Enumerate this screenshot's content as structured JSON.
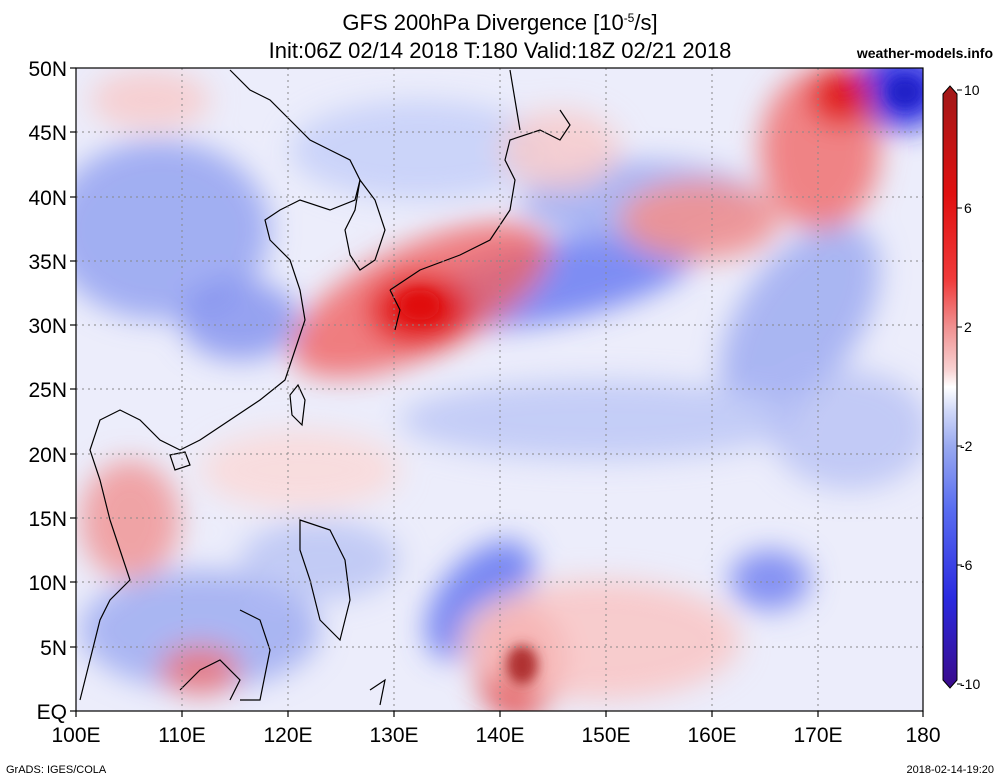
{
  "header": {
    "title": "GFS 200hPa Divergence [10",
    "title_exp": "-5",
    "title_unit": "/s]",
    "subtitle": "Init:06Z 02/14 2018 T:180 Valid:18Z 02/21 2018",
    "brand": "weather-models.info"
  },
  "axes": {
    "x_ticks": [
      "100E",
      "110E",
      "120E",
      "130E",
      "140E",
      "150E",
      "160E",
      "170E",
      "180"
    ],
    "y_ticks": [
      "50N",
      "45N",
      "40N",
      "35N",
      "30N",
      "25N",
      "20N",
      "15N",
      "10N",
      "5N",
      "EQ"
    ]
  },
  "colorbar": {
    "ticks": [
      "10",
      "6",
      "2",
      "-2",
      "-6",
      "-10"
    ],
    "colors": [
      "#3a0a8a",
      "#2a2ae0",
      "#5a6ef0",
      "#98a8f0",
      "#d0d8f8",
      "#ffffff",
      "#f8d0d0",
      "#f09090",
      "#f03a3a",
      "#e01010",
      "#a01818"
    ]
  },
  "map_data": {
    "region": {
      "lon": [
        100,
        180
      ],
      "lat": [
        0,
        50
      ]
    },
    "divergence_maxima": [
      {
        "lon": 133,
        "lat": 31,
        "value": 7
      },
      {
        "lon": 142,
        "lat": 4,
        "value": 9
      },
      {
        "lon": 171,
        "lat": 48,
        "value": 7
      }
    ],
    "divergence_minima": [
      {
        "lon": 178,
        "lat": 49,
        "value": -7
      },
      {
        "lon": 142,
        "lat": 10,
        "value": -5
      },
      {
        "lon": 155,
        "lat": 34,
        "value": -5
      }
    ]
  },
  "footer": {
    "left": "GrADS: IGES/COLA",
    "right": "2018-02-14-19:20"
  }
}
